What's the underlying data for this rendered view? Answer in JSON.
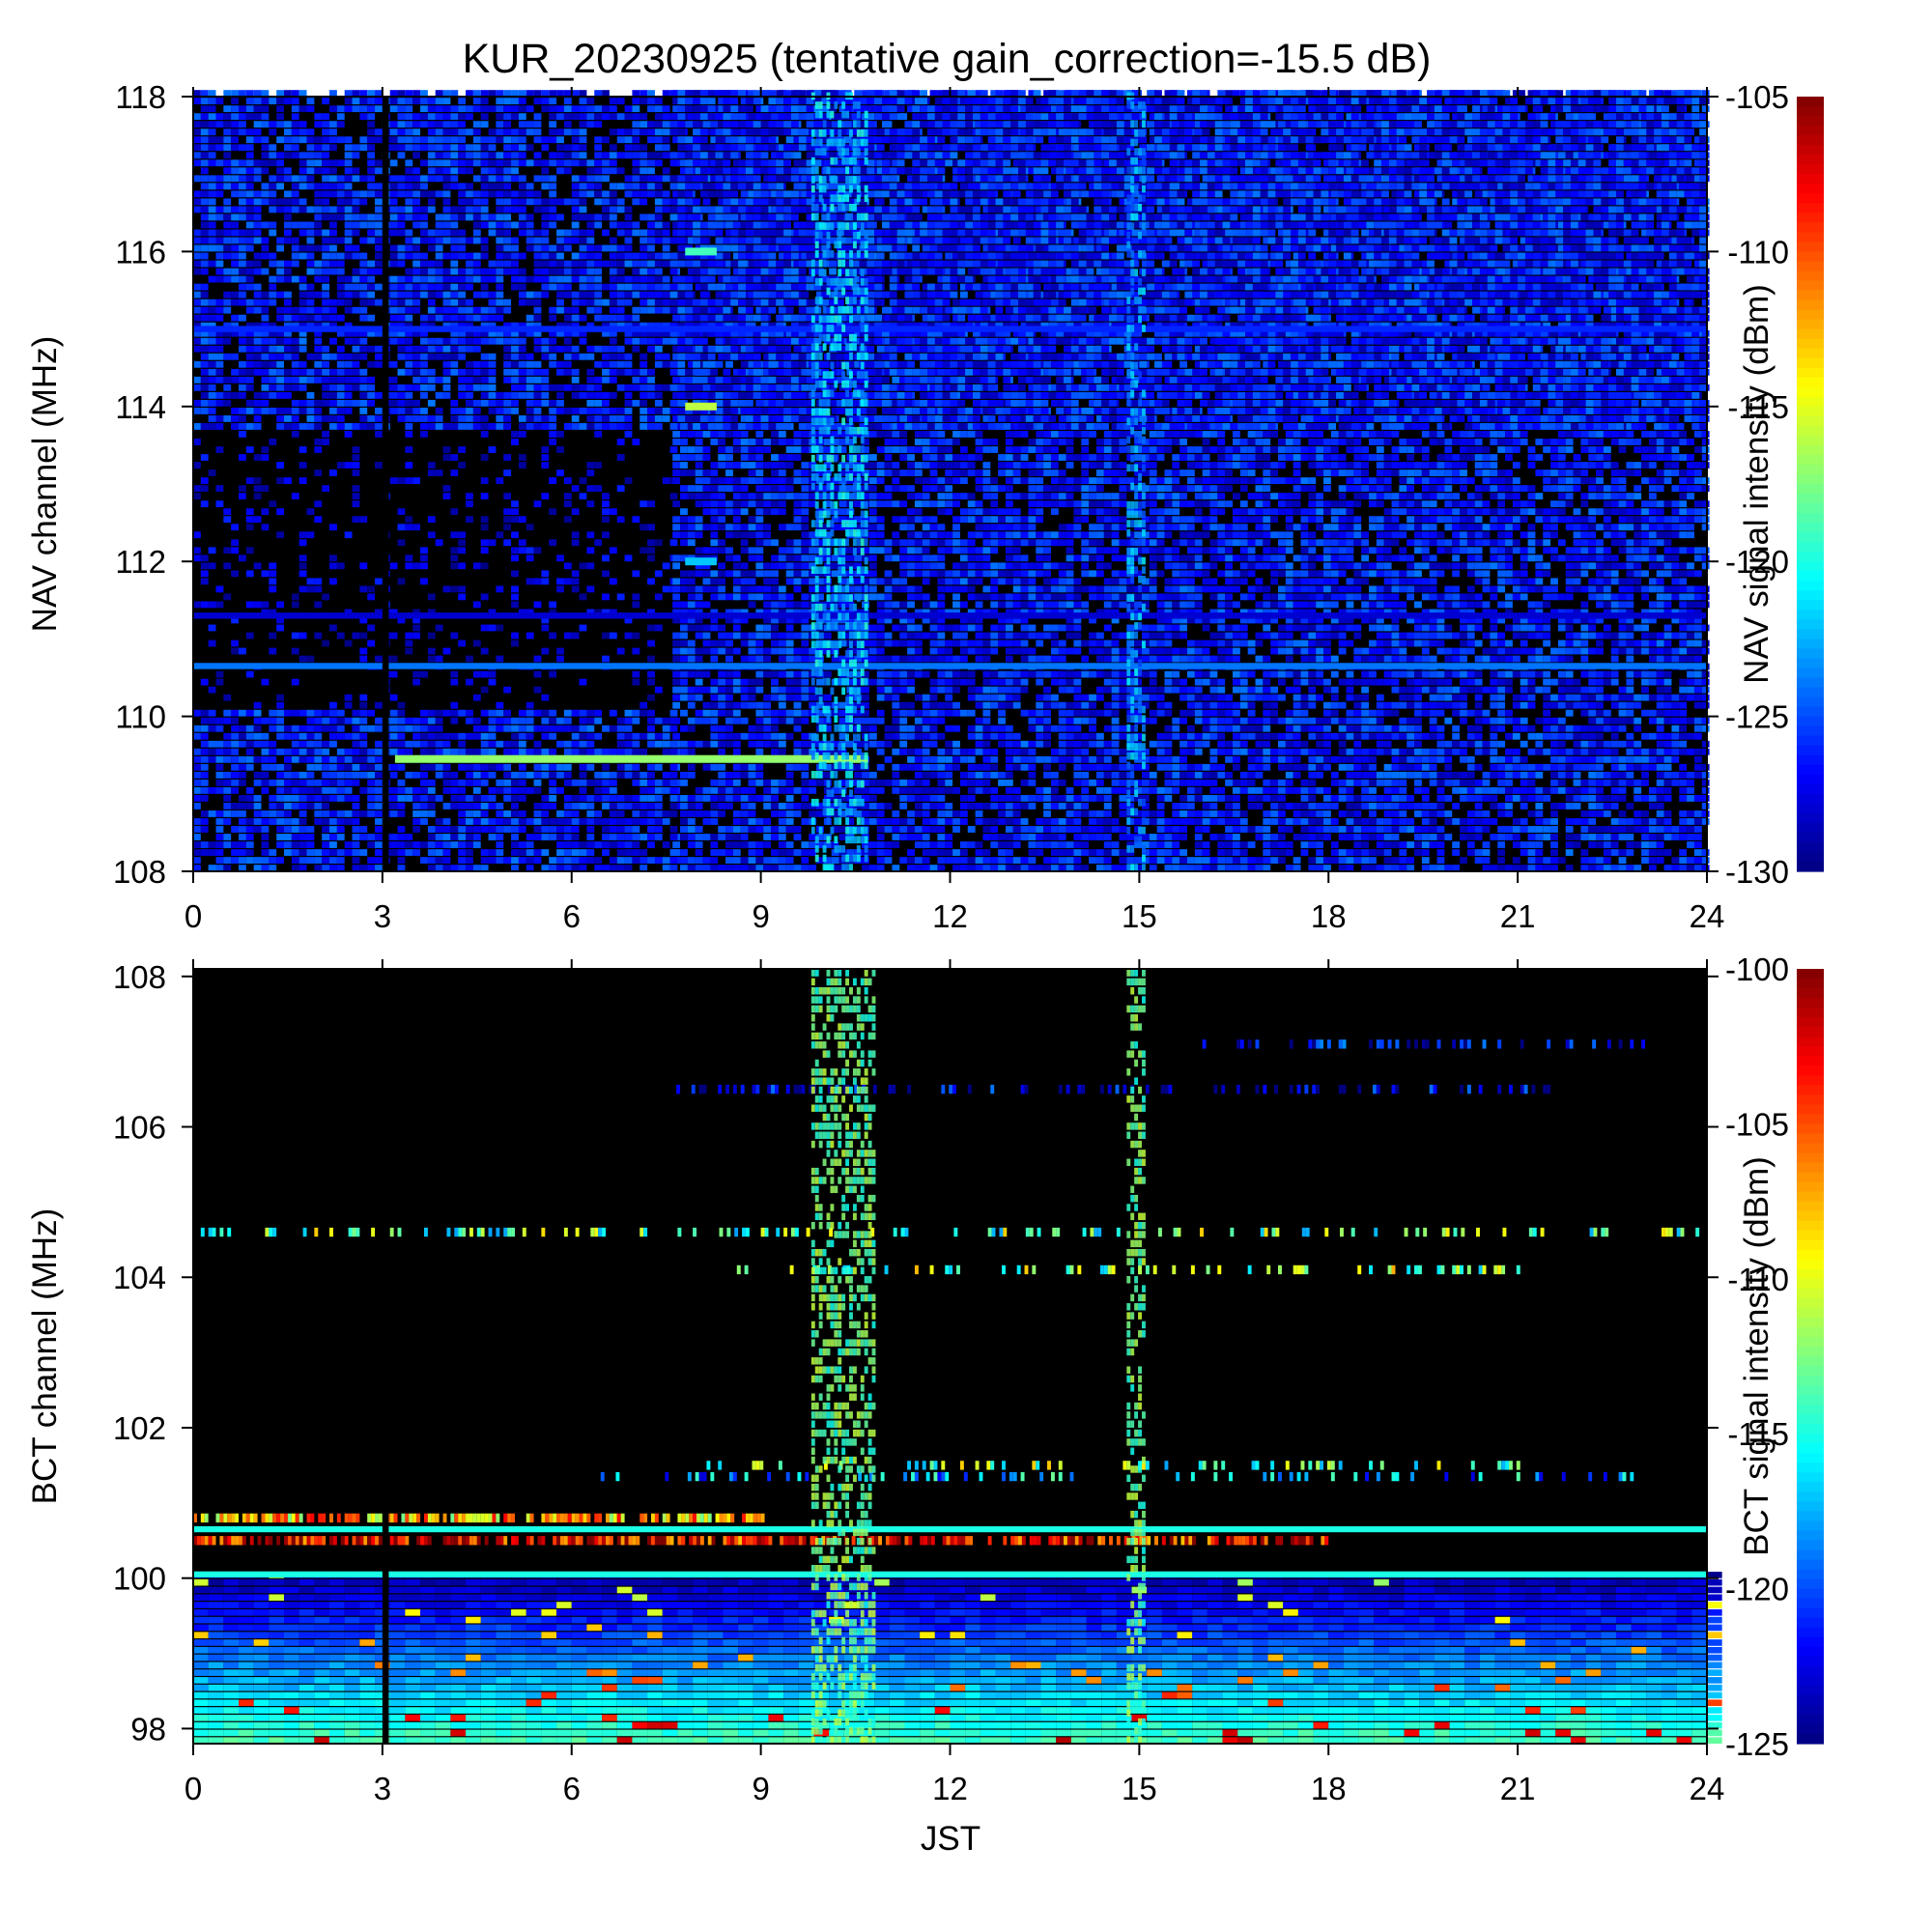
{
  "title": "KUR_20230925 (tentative gain_correction=-15.5 dB)",
  "chart_data": [
    {
      "type": "heatmap",
      "panel": "NAV",
      "xlabel": "",
      "ylabel": "NAV channel (MHz)",
      "colorbar_label": "NAV signal intensity (dBm)",
      "xlim": [
        0,
        24
      ],
      "ylim": [
        108,
        118
      ],
      "x_ticks": [
        0,
        3,
        6,
        9,
        12,
        15,
        18,
        21,
        24
      ],
      "y_ticks": [
        108,
        110,
        112,
        114,
        116,
        118
      ],
      "color_range": [
        -130,
        -105
      ],
      "colorbar_ticks": [
        -105,
        -110,
        -115,
        -120,
        -125,
        -130
      ],
      "colormap": "jet (blue-cyan-green-yellow-red)",
      "background_color": "#000000",
      "features": [
        {
          "kind": "quiet_region",
          "x": [
            0,
            7.6
          ],
          "y": [
            110,
            113.7
          ],
          "level": "mostly black"
        },
        {
          "kind": "noisy_region",
          "x": [
            7.6,
            24
          ],
          "y": [
            108,
            118
          ],
          "level": -127
        },
        {
          "kind": "noisy_region",
          "x": [
            0,
            24
          ],
          "y": [
            113.7,
            118
          ],
          "level": -127
        },
        {
          "kind": "noisy_region",
          "x": [
            0,
            7.6
          ],
          "y": [
            108,
            110
          ],
          "level": -127
        },
        {
          "kind": "constant_channel",
          "freq": 111.3,
          "level": -128
        },
        {
          "kind": "constant_channel",
          "freq": 110.65,
          "level": -124
        },
        {
          "kind": "constant_channel",
          "freq": 115.0,
          "level": -126
        },
        {
          "kind": "channel_segment",
          "freq": 109.45,
          "x": [
            3.2,
            10.7
          ],
          "level": -117
        },
        {
          "kind": "channel_segment",
          "freq": 112.0,
          "x": [
            7.8,
            8.3
          ],
          "level": -122
        },
        {
          "kind": "channel_segment",
          "freq": 114.0,
          "x": [
            7.8,
            8.3
          ],
          "level": -116
        },
        {
          "kind": "channel_segment",
          "freq": 116.0,
          "x": [
            7.8,
            8.3
          ],
          "level": -119
        },
        {
          "kind": "time_band",
          "x": [
            9.8,
            10.7
          ],
          "level": -122
        },
        {
          "kind": "time_band",
          "x": [
            14.8,
            15.05
          ],
          "level": -123
        },
        {
          "kind": "data_gap",
          "x": [
            3.0,
            3.1
          ]
        }
      ]
    },
    {
      "type": "heatmap",
      "panel": "BCT",
      "xlabel": "JST",
      "ylabel": "BCT channel (MHz)",
      "colorbar_label": "BCT signal intensity (dBm)",
      "xlim": [
        0,
        24
      ],
      "ylim": [
        97.8,
        108.1
      ],
      "x_ticks": [
        0,
        3,
        6,
        9,
        12,
        15,
        18,
        21,
        24
      ],
      "y_ticks": [
        98,
        100,
        102,
        104,
        106,
        108
      ],
      "color_range": [
        -125,
        -100
      ],
      "colorbar_ticks": [
        -100,
        -105,
        -110,
        -115,
        -120,
        -125
      ],
      "colormap": "jet (blue-cyan-green-yellow-red)",
      "background_color": "#000000",
      "features": [
        {
          "kind": "gradient_region",
          "x": [
            0,
            24
          ],
          "y": [
            97.8,
            100
          ],
          "level_bottom": -114,
          "level_top": -124
        },
        {
          "kind": "constant_channel",
          "freq": 100.05,
          "level": -115
        },
        {
          "kind": "constant_channel",
          "freq": 100.65,
          "level": -115
        },
        {
          "kind": "noisy_channel",
          "freq": 100.5,
          "x": [
            0,
            18
          ],
          "level": -103
        },
        {
          "kind": "noisy_channel",
          "freq": 100.8,
          "x": [
            0,
            9
          ],
          "level": -108
        },
        {
          "kind": "intermittent_channel",
          "freq": 104.6,
          "x": [
            0,
            24
          ],
          "level": -113
        },
        {
          "kind": "intermittent_channel",
          "freq": 101.35,
          "x": [
            6.4,
            22.8
          ],
          "level": -118
        },
        {
          "kind": "intermittent_channel",
          "freq": 101.5,
          "x": [
            7.6,
            21.1
          ],
          "level": -113
        },
        {
          "kind": "intermittent_channel",
          "freq": 107.1,
          "x": [
            16,
            23
          ],
          "level": -123
        },
        {
          "kind": "intermittent_channel",
          "freq": 104.1,
          "x": [
            8.5,
            21
          ],
          "level": -112
        },
        {
          "kind": "intermittent_channel",
          "freq": 106.5,
          "x": [
            7.6,
            21.5
          ],
          "level": -124
        },
        {
          "kind": "time_band",
          "x": [
            9.8,
            10.8
          ],
          "level": -113
        },
        {
          "kind": "time_band",
          "x": [
            14.8,
            15.1
          ],
          "level": -113
        },
        {
          "kind": "data_gap",
          "x": [
            3.0,
            3.1
          ]
        }
      ]
    }
  ]
}
